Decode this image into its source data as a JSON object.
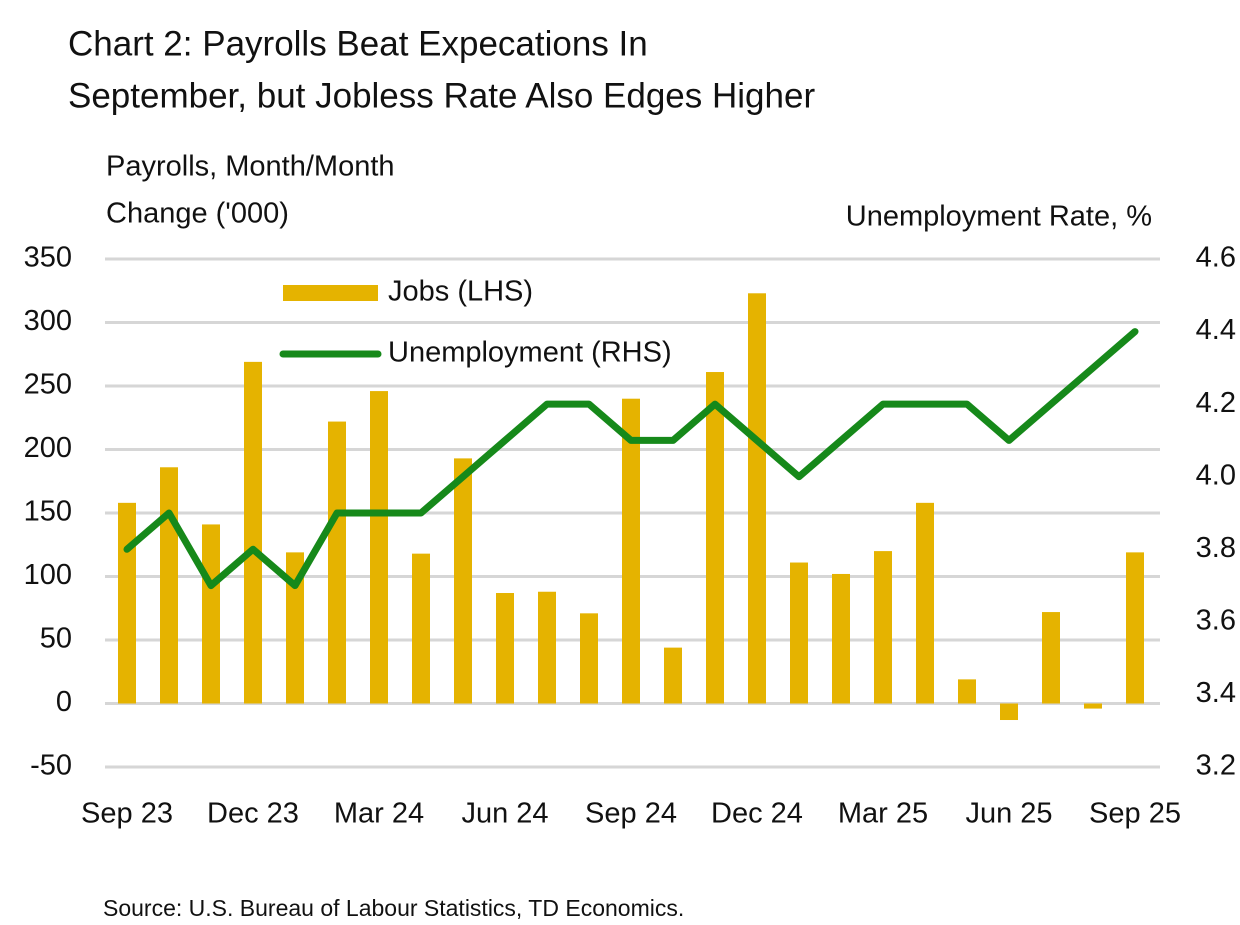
{
  "chart_data": {
    "type": "bar-line",
    "title": [
      "Chart 2: Payrolls Beat Expecations In",
      "September, but Jobless Rate Also Edges Higher"
    ],
    "ylabel": [
      "Payrolls, Month/Month",
      "Change ('000)"
    ],
    "y2label": "Unemployment Rate, %",
    "source": "Source: U.S. Bureau of Labour Statistics, TD Economics.",
    "categories": [
      "Sep 23",
      null,
      null,
      "Dec 23",
      null,
      null,
      "Mar 24",
      null,
      null,
      "Jun 24",
      null,
      null,
      "Sep 24",
      null,
      null,
      "Dec 24",
      null,
      null,
      "Mar 25",
      null,
      null,
      "Jun 25",
      null,
      null,
      "Sep 25"
    ],
    "series": [
      {
        "name": "Jobs (LHS)",
        "color": "#e5b300",
        "type": "bar",
        "values": [
          158,
          186,
          141,
          269,
          119,
          222,
          246,
          118,
          193,
          87,
          88,
          71,
          240,
          44,
          261,
          323,
          111,
          102,
          120,
          158,
          19,
          -13,
          72,
          -4,
          119
        ]
      },
      {
        "name": "Unemployment (RHS)",
        "color": "#16891a",
        "type": "line",
        "axis": "y2",
        "values": [
          3.8,
          3.9,
          3.7,
          3.8,
          3.7,
          3.9,
          3.9,
          3.9,
          4.0,
          4.1,
          4.2,
          4.2,
          4.1,
          4.1,
          4.2,
          4.1,
          4.0,
          4.1,
          4.2,
          4.2,
          4.2,
          4.1,
          4.2,
          4.3,
          4.4
        ]
      }
    ],
    "ylim": [
      -50,
      350
    ],
    "yticks": [
      -50,
      0,
      50,
      100,
      150,
      200,
      250,
      300,
      350
    ],
    "y2lim": [
      3.2,
      4.6
    ],
    "y2ticks": [
      3.2,
      3.4,
      3.6,
      3.8,
      {
        "value": 4.0,
        "label": "4.0"
      },
      4.2,
      4.4,
      4.6
    ],
    "grid": true,
    "legend": "top-left"
  }
}
